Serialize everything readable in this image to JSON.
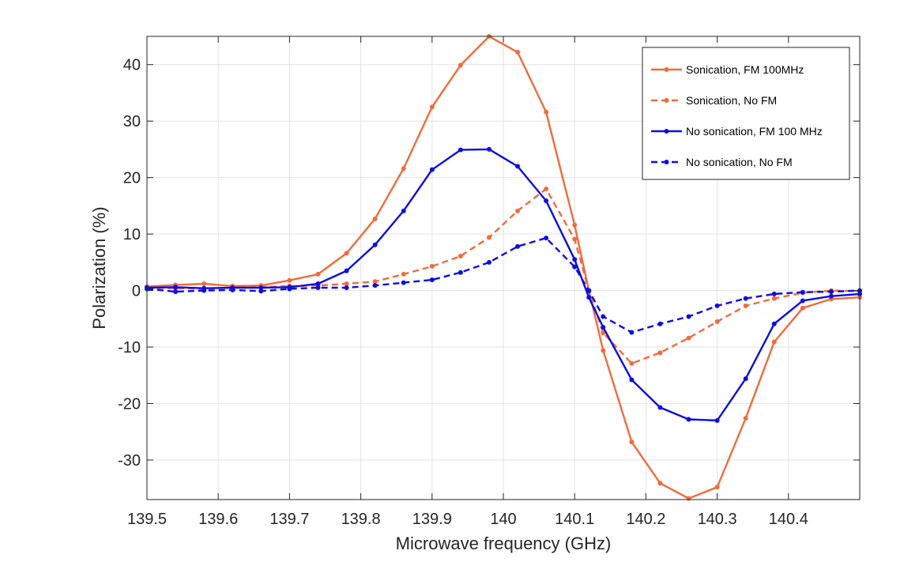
{
  "chart_data": {
    "type": "line",
    "title": "",
    "xlabel": "Microwave frequency (GHz)",
    "ylabel": "Polarization (%)",
    "xlim": [
      139.5,
      140.5
    ],
    "ylim": [
      -37,
      45
    ],
    "xticks": [
      139.5,
      139.6,
      139.7,
      139.8,
      139.9,
      140.0,
      140.1,
      140.2,
      140.3,
      140.4
    ],
    "xtick_labels": [
      "139.5",
      "139.6",
      "139.7",
      "139.8",
      "139.9",
      "140",
      "140.1",
      "140.2",
      "140.3",
      "140.4"
    ],
    "yticks": [
      -30,
      -20,
      -10,
      0,
      10,
      20,
      30,
      40
    ],
    "ytick_labels": [
      "-30",
      "-20",
      "-10",
      "0",
      "10",
      "20",
      "30",
      "40"
    ],
    "grid": true,
    "legend_position": "top-right",
    "x": [
      139.5,
      139.54,
      139.58,
      139.62,
      139.66,
      139.7,
      139.74,
      139.78,
      139.82,
      139.86,
      139.9,
      139.94,
      139.98,
      140.02,
      140.06,
      140.1,
      140.12,
      140.14,
      140.18,
      140.22,
      140.26,
      140.3,
      140.34,
      140.38,
      140.42,
      140.46,
      140.5
    ],
    "series": [
      {
        "name": "Sonication, FM 100MHz",
        "color": "#F26B3A",
        "style": "solid",
        "values": [
          0.7,
          1.0,
          1.2,
          0.8,
          0.9,
          1.8,
          2.9,
          6.6,
          12.7,
          21.6,
          32.5,
          39.9,
          45.0,
          42.2,
          31.6,
          11.6,
          0.0,
          -10.6,
          -26.8,
          -34.1,
          -36.8,
          -34.8,
          -22.6,
          -9.1,
          -3.1,
          -1.5,
          -1.2
        ]
      },
      {
        "name": "Sonication, No FM",
        "color": "#F26B3A",
        "style": "dashed",
        "values": [
          0.5,
          0.4,
          0.3,
          0.5,
          0.6,
          0.8,
          0.9,
          1.2,
          1.6,
          2.9,
          4.3,
          6.1,
          9.4,
          14.1,
          18.0,
          9.1,
          0.0,
          -7.5,
          -12.9,
          -11.0,
          -8.4,
          -5.5,
          -2.7,
          -1.4,
          -0.4,
          0.0,
          -0.1
        ]
      },
      {
        "name": "No sonication, FM 100 MHz",
        "color": "#0D0DE6",
        "style": "solid",
        "values": [
          0.5,
          0.6,
          0.4,
          0.5,
          0.5,
          0.6,
          1.2,
          3.5,
          8.1,
          14.1,
          21.4,
          24.9,
          25.0,
          22.0,
          15.9,
          5.5,
          -1.2,
          -6.5,
          -15.8,
          -20.7,
          -22.8,
          -23.0,
          -15.6,
          -5.9,
          -1.8,
          -1.0,
          -0.6
        ]
      },
      {
        "name": "No sonication, No FM",
        "color": "#0D0DE6",
        "style": "dashed",
        "values": [
          0.3,
          -0.2,
          0.0,
          0.1,
          -0.1,
          0.3,
          0.5,
          0.5,
          0.9,
          1.4,
          1.9,
          3.2,
          5.0,
          7.8,
          9.3,
          4.2,
          0.0,
          -4.6,
          -7.4,
          -5.9,
          -4.6,
          -2.7,
          -1.4,
          -0.6,
          -0.3,
          -0.2,
          0.0
        ]
      }
    ]
  }
}
